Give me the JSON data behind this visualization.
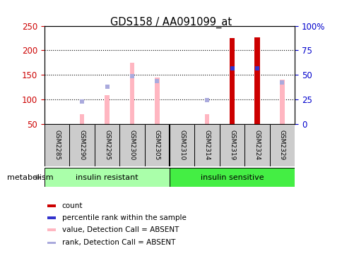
{
  "title": "GDS158 / AA091099_at",
  "samples": [
    "GSM2285",
    "GSM2290",
    "GSM2295",
    "GSM2300",
    "GSM2305",
    "GSM2310",
    "GSM2314",
    "GSM2319",
    "GSM2324",
    "GSM2329"
  ],
  "ylim_left": [
    50,
    250
  ],
  "ylim_right": [
    0,
    100
  ],
  "yticks_left": [
    50,
    100,
    150,
    200,
    250
  ],
  "yticks_right": [
    0,
    25,
    50,
    75,
    100
  ],
  "yticklabels_right": [
    "0",
    "25",
    "50",
    "75",
    "100%"
  ],
  "pink_bar_values": [
    null,
    70,
    108,
    175,
    145,
    null,
    70,
    null,
    null,
    140
  ],
  "pink_rank_values": [
    null,
    96,
    126,
    148,
    137,
    null,
    99,
    null,
    null,
    134
  ],
  "red_bar_values": [
    null,
    null,
    null,
    null,
    null,
    null,
    null,
    225,
    227,
    null
  ],
  "blue_rank_values": [
    null,
    null,
    null,
    null,
    null,
    null,
    null,
    163,
    163,
    null
  ],
  "pink_bar_color": "#FFB6C1",
  "pink_rank_color": "#AAAADD",
  "red_bar_color": "#CC0000",
  "blue_rank_color": "#3333CC",
  "grid_dotted_color": "#000000",
  "left_tick_color": "#CC0000",
  "right_tick_color": "#0000CC",
  "group_resistant_color": "#AAFFAA",
  "group_sensitive_color": "#44EE44",
  "sample_box_color": "#CCCCCC",
  "legend_colors": [
    "#CC0000",
    "#3333CC",
    "#FFB6C1",
    "#AAAADD"
  ],
  "legend_labels": [
    "count",
    "percentile rank within the sample",
    "value, Detection Call = ABSENT",
    "rank, Detection Call = ABSENT"
  ]
}
